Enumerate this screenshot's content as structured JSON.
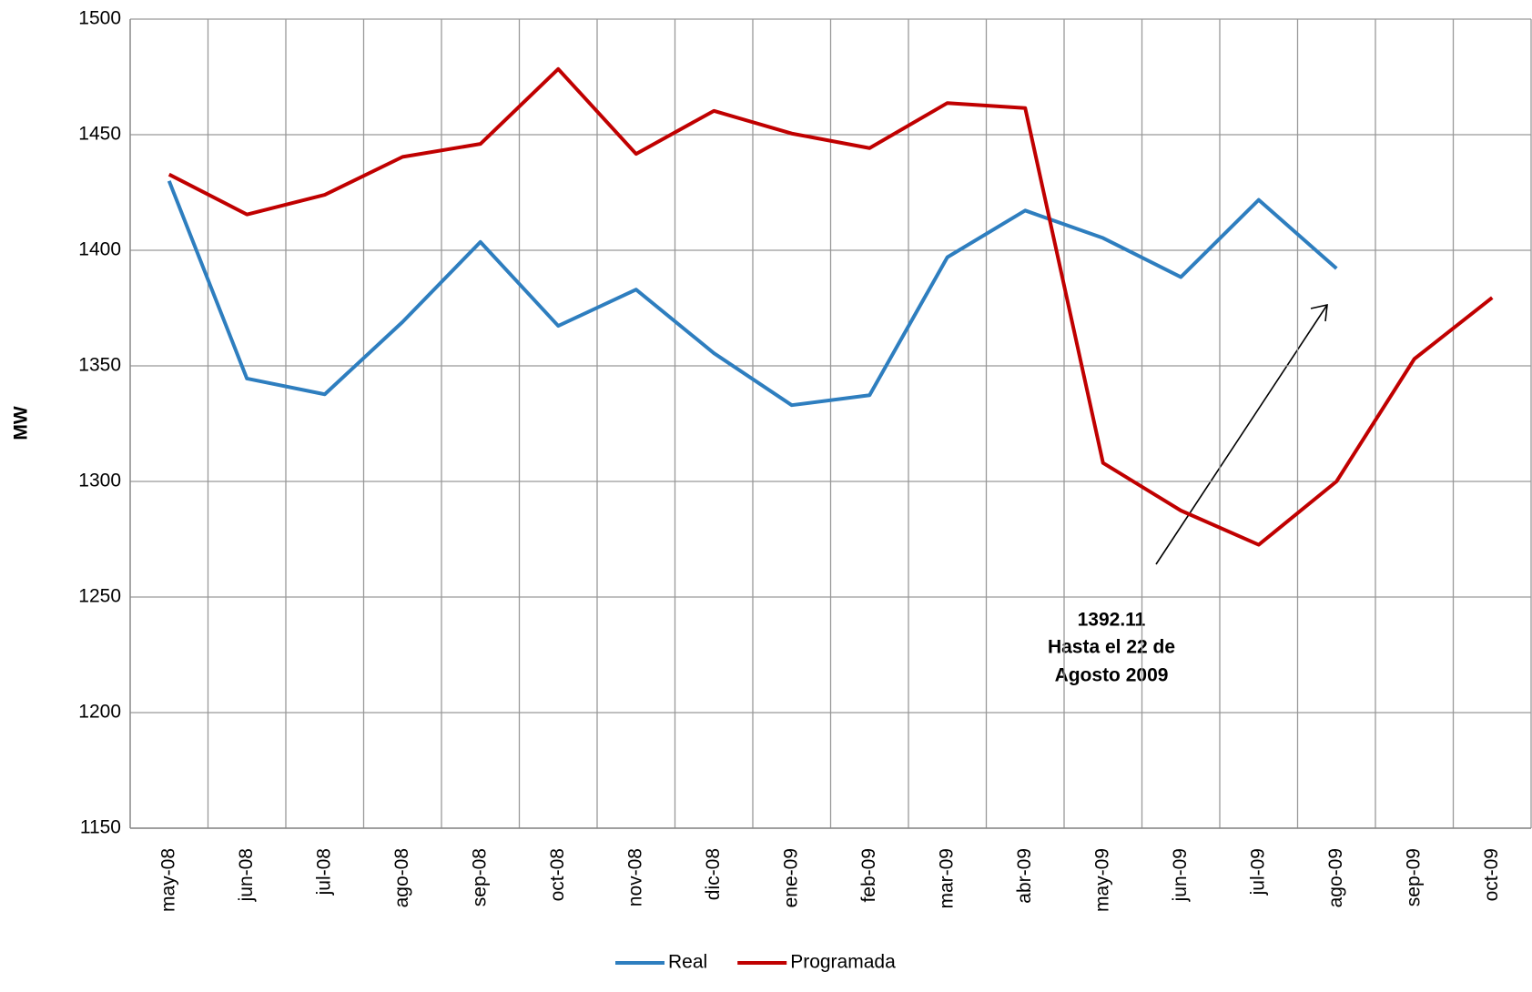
{
  "chart_data": {
    "type": "line",
    "categories": [
      "may-08",
      "jun-08",
      "jul-08",
      "ago-08",
      "sep-08",
      "oct-08",
      "nov-08",
      "dic-08",
      "ene-09",
      "feb-09",
      "mar-09",
      "abr-09",
      "may-09",
      "jun-09",
      "jul-09",
      "ago-09",
      "sep-09",
      "oct-09"
    ],
    "series": [
      {
        "name": "Real",
        "color": "#2e7ebf",
        "values": [
          1430,
          1344.5,
          1337.7,
          1369,
          1403.6,
          1367.3,
          1383,
          1355.5,
          1333,
          1337.3,
          1397,
          1417.2,
          1405.3,
          1388.4,
          1421.8,
          1392.11,
          null,
          null
        ]
      },
      {
        "name": "Programada",
        "color": "#c00000",
        "values": [
          1432.8,
          1415.5,
          1424,
          1440.4,
          1446,
          1478.4,
          1441.7,
          1460.3,
          1450.5,
          1444.2,
          1463.7,
          1461.5,
          1308,
          1287.4,
          1272.6,
          1300,
          1353,
          1379.5
        ]
      }
    ],
    "y_label": "MW",
    "ylim": [
      1150,
      1500
    ],
    "yticks": [
      1150,
      1200,
      1250,
      1300,
      1350,
      1400,
      1450,
      1500
    ],
    "grid": true,
    "legend": "bottom",
    "annotation": [
      "1392.11",
      "Hasta el 22 de",
      "Agosto 2009"
    ]
  }
}
